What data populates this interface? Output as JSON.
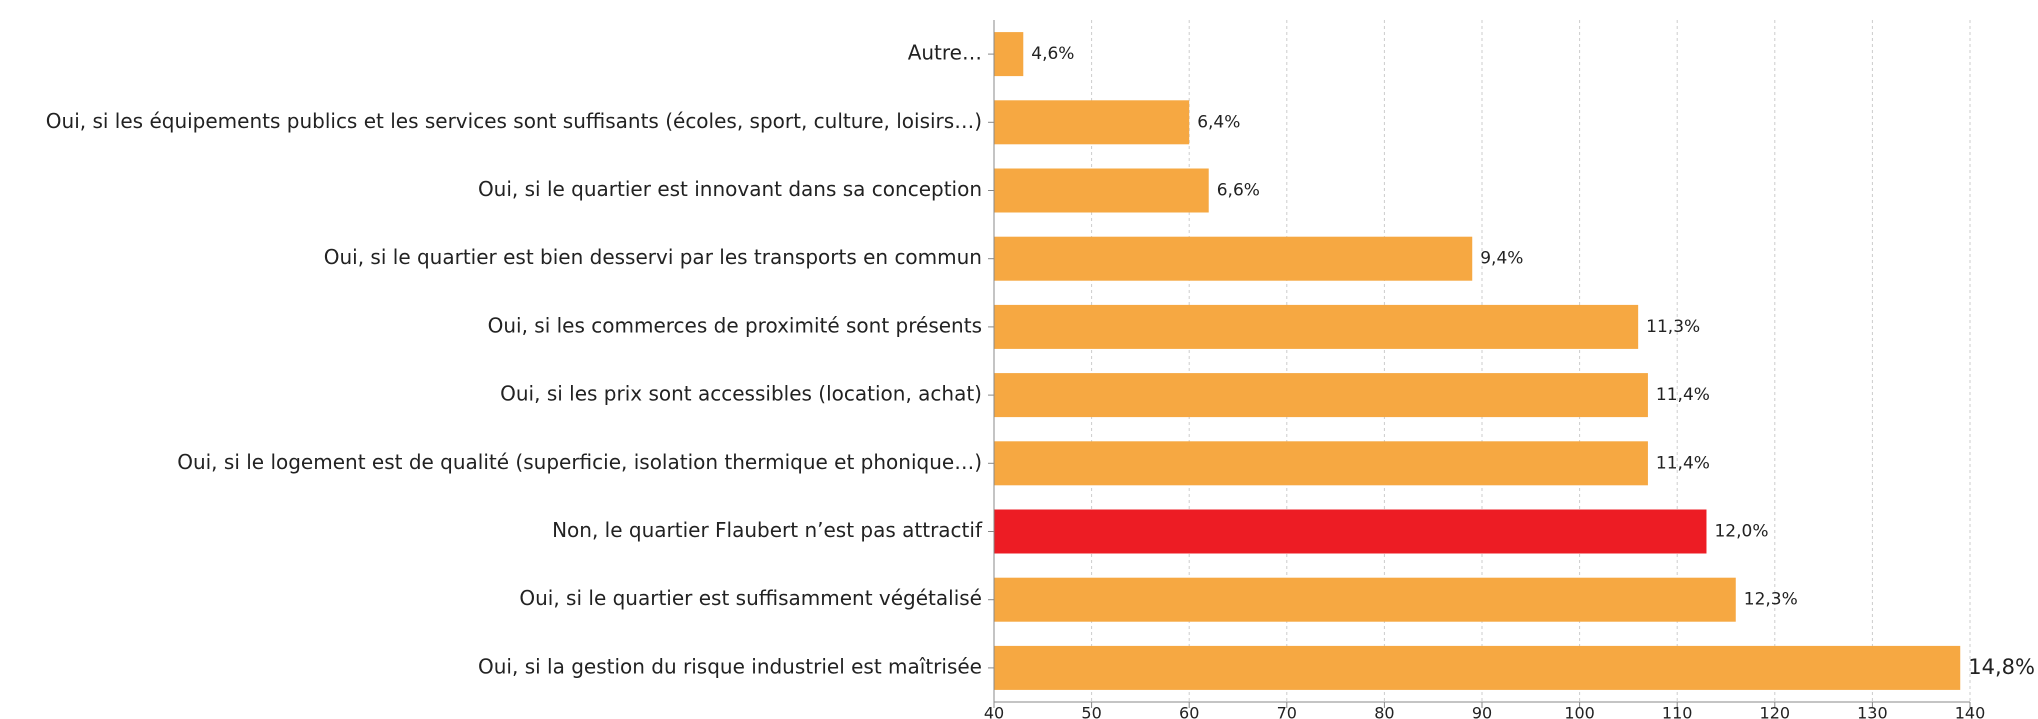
{
  "chart_data": {
    "type": "barh",
    "categories": [
      "Autre…",
      "Oui, si les équipements publics et les services sont suffisants (écoles, sport, culture, loisirs…)",
      "Oui, si le quartier est innovant dans sa conception",
      "Oui, si le quartier est bien desservi par les transports en commun",
      "Oui, si les commerces de proximité sont présents",
      "Oui, si les prix sont accessibles (location, achat)",
      "Oui, si le logement est de qualité (superficie, isolation thermique et phonique…)",
      "Non, le quartier Flaubert n’est pas attractif",
      "Oui, si le quartier est suffisamment végétalisé",
      "Oui, si la gestion du risque industriel est maîtrisée"
    ],
    "values": [
      43,
      60,
      62,
      89,
      106,
      107,
      107,
      113,
      116,
      139
    ],
    "value_labels": [
      "4,6%",
      "6,4%",
      "6,6%",
      "9,4%",
      "11,3%",
      "11,4%",
      "11,4%",
      "12,0%",
      "12,3%",
      "14,8%"
    ],
    "colors": [
      "#f6a842",
      "#f6a842",
      "#f6a842",
      "#f6a842",
      "#f6a842",
      "#f6a842",
      "#f6a842",
      "#ed1c24",
      "#f6a842",
      "#f6a842"
    ],
    "xlim": [
      40,
      140
    ],
    "xticks": [
      40,
      50,
      60,
      70,
      80,
      90,
      100,
      110,
      120,
      130,
      140
    ],
    "grid": true
  }
}
